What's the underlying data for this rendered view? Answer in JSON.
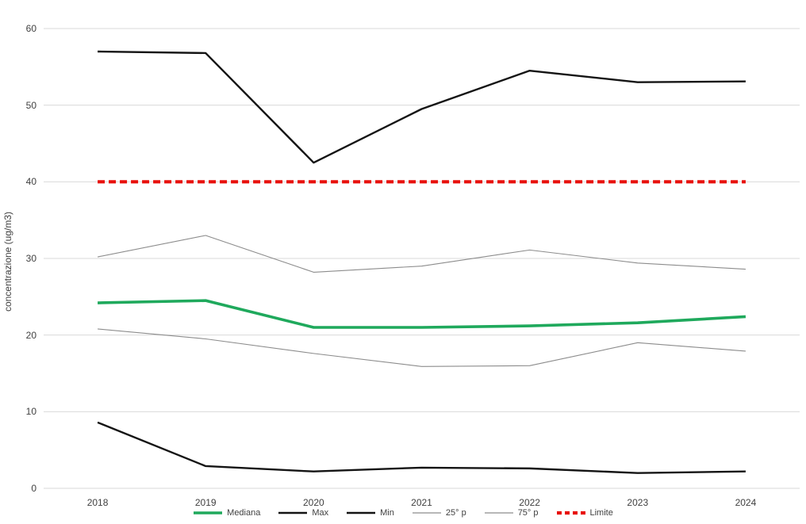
{
  "chart_data": {
    "type": "line",
    "title": "",
    "xlabel": "",
    "ylabel": "concentrazione (ug/m3)",
    "ylim": [
      0,
      60
    ],
    "ytick_step": 10,
    "grid": "horizontal-only",
    "legend_position": "bottom-center",
    "categories": [
      "2018",
      "2019",
      "2020",
      "2021",
      "2022",
      "2023",
      "2024"
    ],
    "series": [
      {
        "name": "Mediana",
        "values": [
          24.2,
          24.5,
          21.0,
          21.0,
          21.2,
          21.6,
          22.4
        ],
        "color": "#1FA95C",
        "width": 3.6,
        "dash": ""
      },
      {
        "name": "Max",
        "values": [
          57.0,
          56.8,
          42.5,
          49.5,
          54.5,
          53.0,
          53.1
        ],
        "color": "#141414",
        "width": 2.4,
        "dash": ""
      },
      {
        "name": "Min",
        "values": [
          8.6,
          2.9,
          2.2,
          2.7,
          2.6,
          2.0,
          2.2
        ],
        "color": "#141414",
        "width": 2.4,
        "dash": ""
      },
      {
        "name": "25° p",
        "values": [
          20.8,
          19.5,
          17.6,
          15.9,
          16.0,
          19.0,
          17.9
        ],
        "color": "#8C8C8C",
        "width": 1.1,
        "dash": ""
      },
      {
        "name": "75° p",
        "values": [
          30.2,
          33.0,
          28.2,
          29.0,
          31.1,
          29.4,
          28.6
        ],
        "color": "#8C8C8C",
        "width": 1.1,
        "dash": ""
      },
      {
        "name": "Limite",
        "values": [
          40,
          40,
          40,
          40,
          40,
          40,
          40
        ],
        "color": "#E8100C",
        "width": 4.2,
        "dash": "9 5"
      }
    ]
  },
  "colors": {
    "background": "#FFFFFF",
    "gridline": "#D9D9D9",
    "tick_text": "#404040"
  },
  "layout_values": {
    "y_ticks": [
      "0",
      "10",
      "20",
      "30",
      "40",
      "50",
      "60"
    ]
  }
}
